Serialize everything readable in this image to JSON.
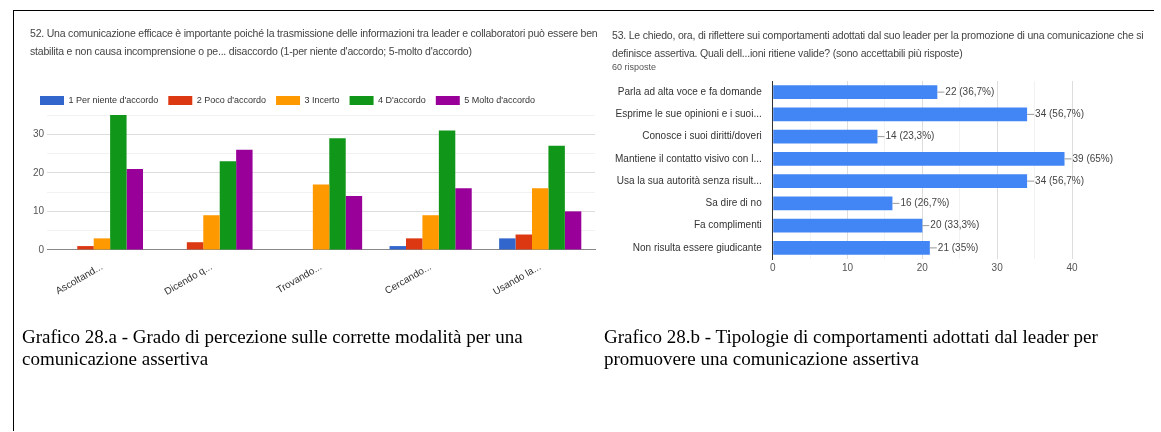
{
  "chart_data": [
    {
      "type": "bar",
      "title": "52. Una comunicazione efficace è importante poiché la trasmissione delle informazioni tra leader e collaboratori può essere ben stabilita e non causa incomprensione o pe... disaccordo (1-per niente d'accordo; 5-molto d'accordo)",
      "categories": [
        "Ascoltand...",
        "Dicendo q...",
        "Trovando...",
        "Cercando...",
        "Usando la..."
      ],
      "series": [
        {
          "name": "1 Per niente d'accordo",
          "color": "#3366cc",
          "values": [
            0,
            0,
            0,
            1,
            3
          ]
        },
        {
          "name": "2 Poco d'accordo",
          "color": "#dc3912",
          "values": [
            1,
            2,
            0,
            3,
            4
          ]
        },
        {
          "name": "3 Incerto",
          "color": "#ff9900",
          "values": [
            3,
            9,
            17,
            9,
            16
          ]
        },
        {
          "name": "4 D'accordo",
          "color": "#109618",
          "values": [
            35,
            23,
            29,
            31,
            27
          ]
        },
        {
          "name": "5 Molto d'accordo",
          "color": "#990099",
          "values": [
            21,
            26,
            14,
            16,
            10
          ]
        }
      ],
      "ylim": [
        0,
        35
      ],
      "yticks": [
        0,
        {
          "value": 5,
          "label": null
        },
        10,
        {
          "value": 15,
          "label": null
        },
        20,
        {
          "value": 25,
          "label": null
        },
        30,
        {
          "value": 35,
          "label": null
        }
      ],
      "grid": "y",
      "legend": "top",
      "annotations": [
        "Grafico 28.a - Grado di percezione sulle corrette modalità per una comunicazione assertiva"
      ]
    },
    {
      "type": "bar",
      "orientation": "horizontal",
      "title": "53. Le chiedo, ora, di riflettere sui comportamenti adottati dal suo leader per la promozione di una comunicazione che si definisce assertiva. Quali dell...ioni ritiene valide? (sono accettabili più risposte)",
      "subtitle": "60 risposte",
      "categories": [
        "Parla ad alta voce e fa domande",
        "Esprime le sue opinioni e i suoi...",
        "Conosce i suoi diritti/doveri",
        "Mantiene il contatto visivo con l...",
        "Usa la sua autorità senza risult...",
        "Sa dire di no",
        "Fa complimenti",
        "Non risulta essere giudicante"
      ],
      "values": [
        22,
        34,
        14,
        39,
        34,
        16,
        20,
        21
      ],
      "color": "#4285f4",
      "value_labels": [
        "22 (36,7%)",
        "34 (56,7%)",
        "14 (23,3%)",
        "39 (65%)",
        "34 (56,7%)",
        "16 (26,7%)",
        "20 (33,3%)",
        "21 (35%)"
      ],
      "xlim": [
        0,
        40
      ],
      "xticks": [
        0,
        {
          "value": 5,
          "label": null
        },
        10,
        {
          "value": 15,
          "label": null
        },
        20,
        {
          "value": 25,
          "label": null
        },
        30,
        {
          "value": 35,
          "label": null
        },
        40
      ],
      "grid": "x",
      "annotations": [
        "Grafico 28.b - Tipologie di comportamenti adottati dal leader per promuovere una comunicazione assertiva"
      ]
    }
  ]
}
